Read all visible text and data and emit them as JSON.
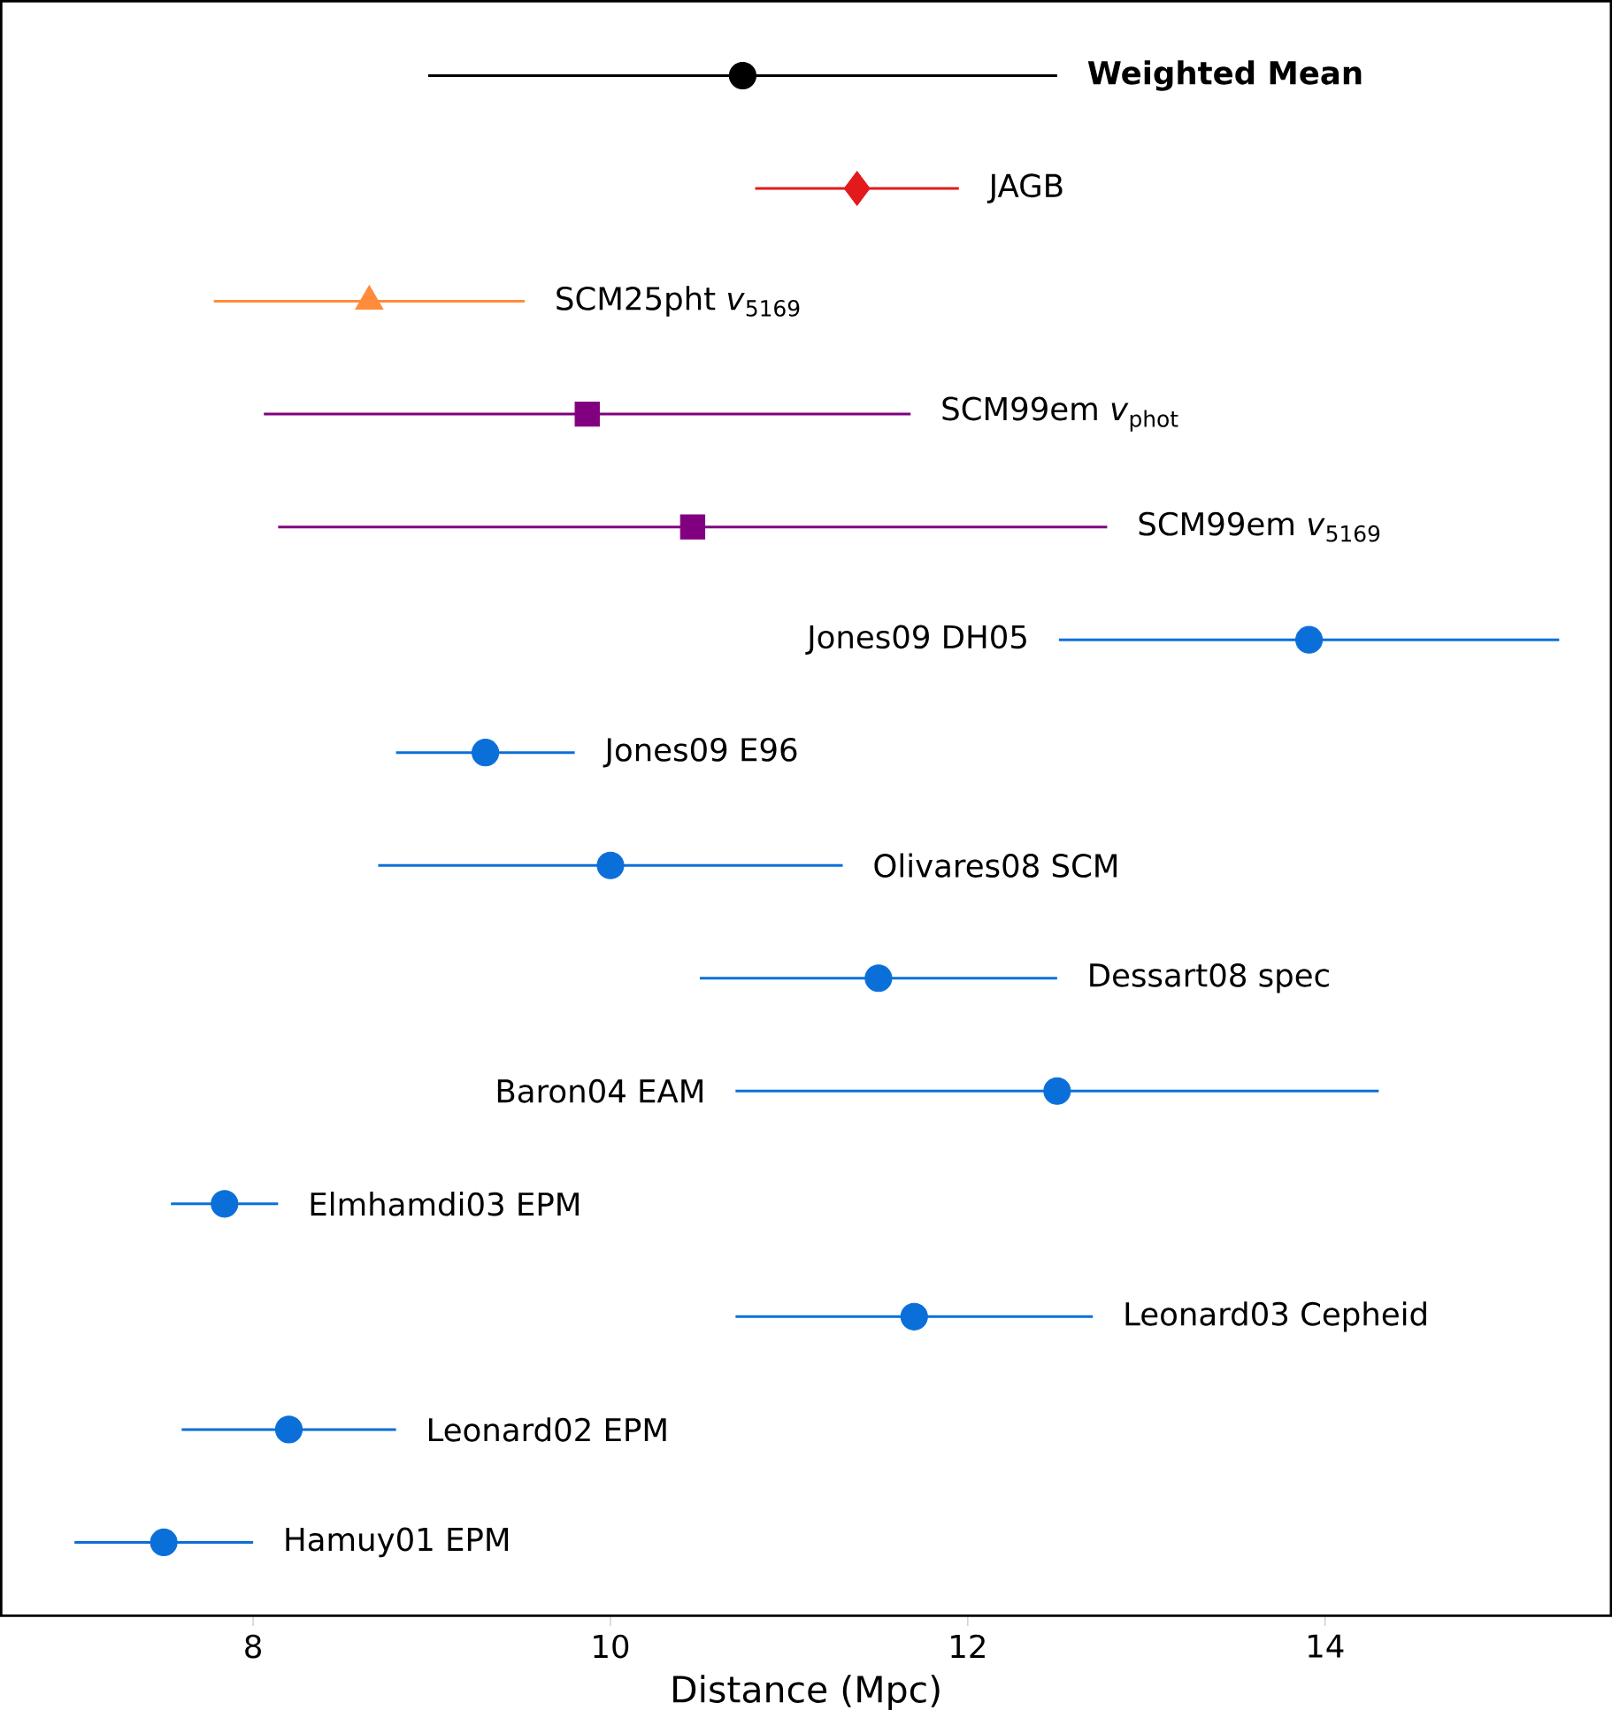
{
  "chart_data": {
    "type": "scatter",
    "orientation": "horizontal",
    "xlabel": "Distance (Mpc)",
    "categories": [
      "**Weighted Mean**",
      "JAGB",
      "SCM25pht *v*$_{5169}$",
      "SCM99em *v*$_{phot}$",
      "SCM99em *v*$_{5169}$",
      "Jones09 DH05",
      "Jones09 E96",
      "Olivares08 SCM",
      "Dessart08 spec",
      "Baron04 EAM",
      "Elmhamdi03 EPM",
      "Leonard03 Cepheid",
      "Leonard02 EPM",
      "Hamuy01 EPM"
    ],
    "series": [
      {
        "color": "#000000",
        "marker": "circle",
        "values": [
          10.74,
          null,
          null,
          null,
          null,
          null,
          null,
          null,
          null,
          null,
          null,
          null,
          null,
          null
        ],
        "errors": [
          1.76,
          null,
          null,
          null,
          null,
          null,
          null,
          null,
          null,
          null,
          null,
          null,
          null,
          null
        ]
      },
      {
        "color": "#e31a1c",
        "marker": "diamond",
        "values": [
          null,
          11.38,
          null,
          null,
          null,
          null,
          null,
          null,
          null,
          null,
          null,
          null,
          null,
          null
        ],
        "errors": [
          null,
          0.57,
          null,
          null,
          null,
          null,
          null,
          null,
          null,
          null,
          null,
          null,
          null,
          null
        ]
      },
      {
        "color": "#ff8c3a",
        "marker": "triangle",
        "values": [
          null,
          null,
          8.65,
          null,
          null,
          null,
          null,
          null,
          null,
          null,
          null,
          null,
          null,
          null
        ],
        "errors": [
          null,
          null,
          0.87,
          null,
          null,
          null,
          null,
          null,
          null,
          null,
          null,
          null,
          null,
          null
        ]
      },
      {
        "color": "#800080",
        "marker": "square",
        "values": [
          null,
          null,
          null,
          9.87,
          10.46,
          null,
          null,
          null,
          null,
          null,
          null,
          null,
          null,
          null
        ],
        "errors": [
          null,
          null,
          null,
          1.81,
          2.32,
          null,
          null,
          null,
          null,
          null,
          null,
          null,
          null,
          null
        ]
      },
      {
        "color": "#0b6fd9",
        "marker": "circle",
        "values": [
          null,
          null,
          null,
          null,
          null,
          13.91,
          9.3,
          10.0,
          11.5,
          12.5,
          7.84,
          11.7,
          8.2,
          7.5
        ],
        "errors": [
          null,
          null,
          null,
          null,
          null,
          1.4,
          0.5,
          1.3,
          1.0,
          1.8,
          0.3,
          1.0,
          0.6,
          0.5
        ]
      }
    ],
    "xlim": [
      6.59,
      15.6
    ],
    "xticks": [
      8,
      10,
      12,
      14
    ],
    "tick_labels": "x",
    "legend": false,
    "grid": false
  }
}
